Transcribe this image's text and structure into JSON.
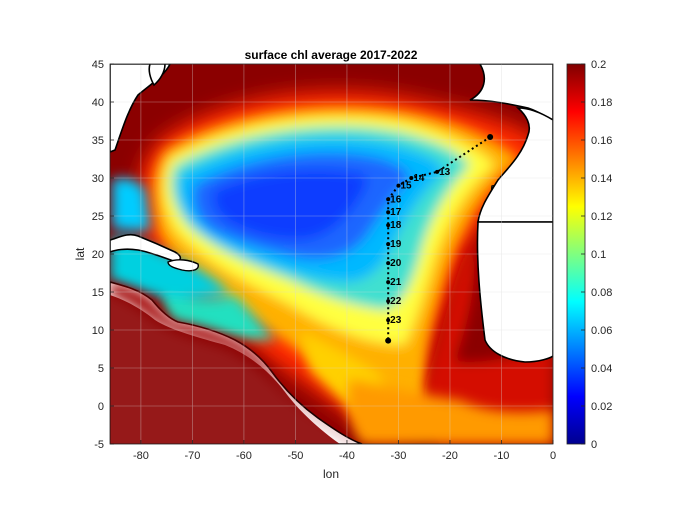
{
  "chart_data": {
    "type": "heatmap",
    "title": "surface chl average 2017-2022",
    "xlabel": "lon",
    "ylabel": "lat",
    "xlim": [
      -86,
      0
    ],
    "ylim": [
      -5,
      45
    ],
    "xticks": [
      -80,
      -70,
      -60,
      -50,
      -40,
      -30,
      -20,
      -10,
      0
    ],
    "yticks": [
      -5,
      0,
      5,
      10,
      15,
      20,
      25,
      30,
      35,
      40,
      45
    ],
    "grid": true,
    "colormap": "jet",
    "colors": {
      "land": "#ffffff",
      "coast": "#000000",
      "track": "#000000"
    },
    "colorbar": {
      "range": [
        0,
        0.2
      ],
      "ticks": [
        0,
        0.02,
        0.04,
        0.06,
        0.08,
        0.1,
        0.12,
        0.14,
        0.16,
        0.18,
        0.2
      ],
      "placement": "right"
    },
    "stations": [
      {
        "label": "13",
        "lon": -22.5,
        "lat": 30.8
      },
      {
        "label": "14",
        "lon": -27.5,
        "lat": 30.0
      },
      {
        "label": "15",
        "lon": -30.0,
        "lat": 29.0
      },
      {
        "label": "16",
        "lon": -32.0,
        "lat": 27.2
      },
      {
        "label": "17",
        "lon": -32.0,
        "lat": 25.5
      },
      {
        "label": "18",
        "lon": -32.0,
        "lat": 23.8
      },
      {
        "label": "19",
        "lon": -32.0,
        "lat": 21.3
      },
      {
        "label": "20",
        "lon": -32.0,
        "lat": 18.8
      },
      {
        "label": "21",
        "lon": -32.0,
        "lat": 16.3
      },
      {
        "label": "22",
        "lon": -32.0,
        "lat": 13.8
      },
      {
        "label": "23",
        "lon": -32.0,
        "lat": 11.3
      }
    ],
    "track_endpoints": [
      {
        "lon": -12.2,
        "lat": 35.4
      },
      {
        "lon": -32.0,
        "lat": 8.6
      }
    ]
  }
}
